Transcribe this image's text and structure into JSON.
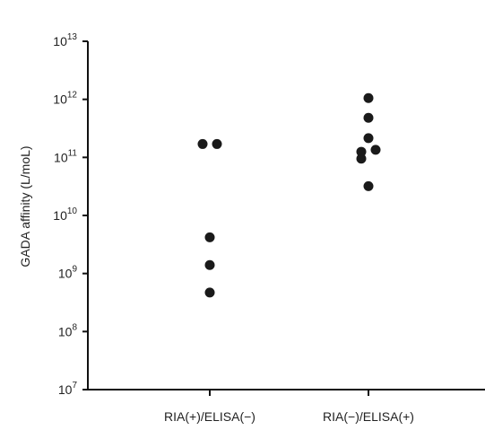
{
  "chart_data": {
    "type": "scatter",
    "title": "",
    "xlabel": "",
    "ylabel": "GADA affinity (L/moL)",
    "yscale": "log",
    "ylim": [
      10000000,
      10000000000000
    ],
    "y_tick_labels": [
      {
        "base": "10",
        "exp": "7"
      },
      {
        "base": "10",
        "exp": "8"
      },
      {
        "base": "10",
        "exp": "9"
      },
      {
        "base": "10",
        "exp": "10"
      },
      {
        "base": "10",
        "exp": "11"
      },
      {
        "base": "10",
        "exp": "12"
      },
      {
        "base": "10",
        "exp": "13"
      }
    ],
    "categories": [
      "RIA(+)/ELISA(−)",
      "RIA(−)/ELISA(+)"
    ],
    "series": [
      {
        "category": "RIA(+)/ELISA(−)",
        "values": [
          170000000000,
          170000000000,
          4200000000,
          1400000000,
          470000000
        ]
      },
      {
        "category": "RIA(−)/ELISA(+)",
        "values": [
          1050000000000,
          480000000000,
          215000000000,
          125000000000,
          135000000000,
          95000000000,
          32000000000
        ]
      }
    ],
    "marker_color": "#1a1a1a",
    "grid": false,
    "legend": "none"
  }
}
